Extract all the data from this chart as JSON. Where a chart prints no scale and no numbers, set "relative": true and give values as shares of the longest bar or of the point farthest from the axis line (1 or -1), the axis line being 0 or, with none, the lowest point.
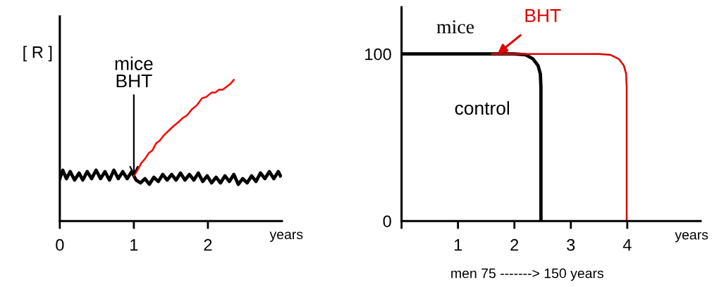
{
  "chart_data": [
    {
      "type": "line",
      "relative": true,
      "ylabel": "[ R ]",
      "xlabel": "years",
      "xlim": [
        0,
        3.0
      ],
      "xticks": [
        0,
        1,
        2
      ],
      "series": [
        {
          "color": "#000000",
          "x": [
            0,
            0.04,
            0.09,
            0.14,
            0.2,
            0.26,
            0.31,
            0.37,
            0.43,
            0.49,
            0.55,
            0.61,
            0.67,
            0.73,
            0.79,
            0.85,
            0.91,
            0.97,
            1.03,
            1.09,
            1.15,
            1.21,
            1.27,
            1.33,
            1.39,
            1.45,
            1.51,
            1.57,
            1.63,
            1.69,
            1.75,
            1.81,
            1.87,
            1.93,
            1.99,
            2.05,
            2.11,
            2.17,
            2.23,
            2.29,
            2.35,
            2.41,
            2.47,
            2.53,
            2.59,
            2.65,
            2.71,
            2.77,
            2.83,
            2.89,
            2.95,
            2.98
          ],
          "values": [
            0.3,
            0.36,
            0.3,
            0.35,
            0.29,
            0.34,
            0.29,
            0.35,
            0.3,
            0.36,
            0.3,
            0.35,
            0.29,
            0.36,
            0.3,
            0.35,
            0.3,
            0.35,
            0.29,
            0.27,
            0.3,
            0.26,
            0.31,
            0.28,
            0.33,
            0.29,
            0.33,
            0.29,
            0.34,
            0.29,
            0.33,
            0.29,
            0.34,
            0.28,
            0.32,
            0.27,
            0.31,
            0.27,
            0.32,
            0.28,
            0.33,
            0.26,
            0.3,
            0.27,
            0.32,
            0.28,
            0.34,
            0.3,
            0.35,
            0.3,
            0.35,
            0.32
          ]
        },
        {
          "color": "#ff0000",
          "x": [
            1.0,
            1.05,
            1.1,
            1.15,
            1.2,
            1.25,
            1.3,
            1.35,
            1.41,
            1.47,
            1.53,
            1.6,
            1.66,
            1.72,
            1.78,
            1.85,
            1.92,
            1.98,
            2.05,
            2.1,
            2.15,
            2.2,
            2.25,
            2.3,
            2.35
          ],
          "values": [
            0.32,
            0.36,
            0.41,
            0.44,
            0.48,
            0.5,
            0.55,
            0.57,
            0.61,
            0.64,
            0.67,
            0.7,
            0.73,
            0.75,
            0.79,
            0.82,
            0.87,
            0.88,
            0.91,
            0.91,
            0.93,
            0.93,
            0.95,
            0.97,
            1.0
          ]
        }
      ],
      "annotations": [
        {
          "text": "mice\nBHT",
          "x": 1.0,
          "y": 0.32
        }
      ],
      "tick_labels": "x",
      "legend": false,
      "grid": false
    },
    {
      "type": "line",
      "title": "mice",
      "xlabel": "years",
      "xlim": [
        0,
        5.3
      ],
      "ylim": [
        0,
        128
      ],
      "xticks": [
        {
          "value": 0,
          "label": null
        },
        1,
        2,
        3,
        4
      ],
      "yticks": [
        0,
        100
      ],
      "series": [
        {
          "name": "control",
          "color": "#000000",
          "x": [
            0,
            1.0,
            2.0,
            2.2,
            2.33,
            2.42,
            2.46,
            2.47,
            2.47
          ],
          "values": [
            100,
            100,
            100,
            99.5,
            97,
            93,
            88,
            80,
            0
          ]
        },
        {
          "name": "BHT",
          "color": "#e00000",
          "x": [
            1.6,
            2.5,
            3.5,
            3.7,
            3.85,
            3.94,
            3.98,
            3.99,
            3.99
          ],
          "values": [
            100,
            100,
            100,
            99.5,
            97,
            93,
            88,
            80,
            0
          ]
        }
      ],
      "annotations": [
        "men 75 -------> 150 years"
      ],
      "legend": false,
      "grid": false
    }
  ]
}
